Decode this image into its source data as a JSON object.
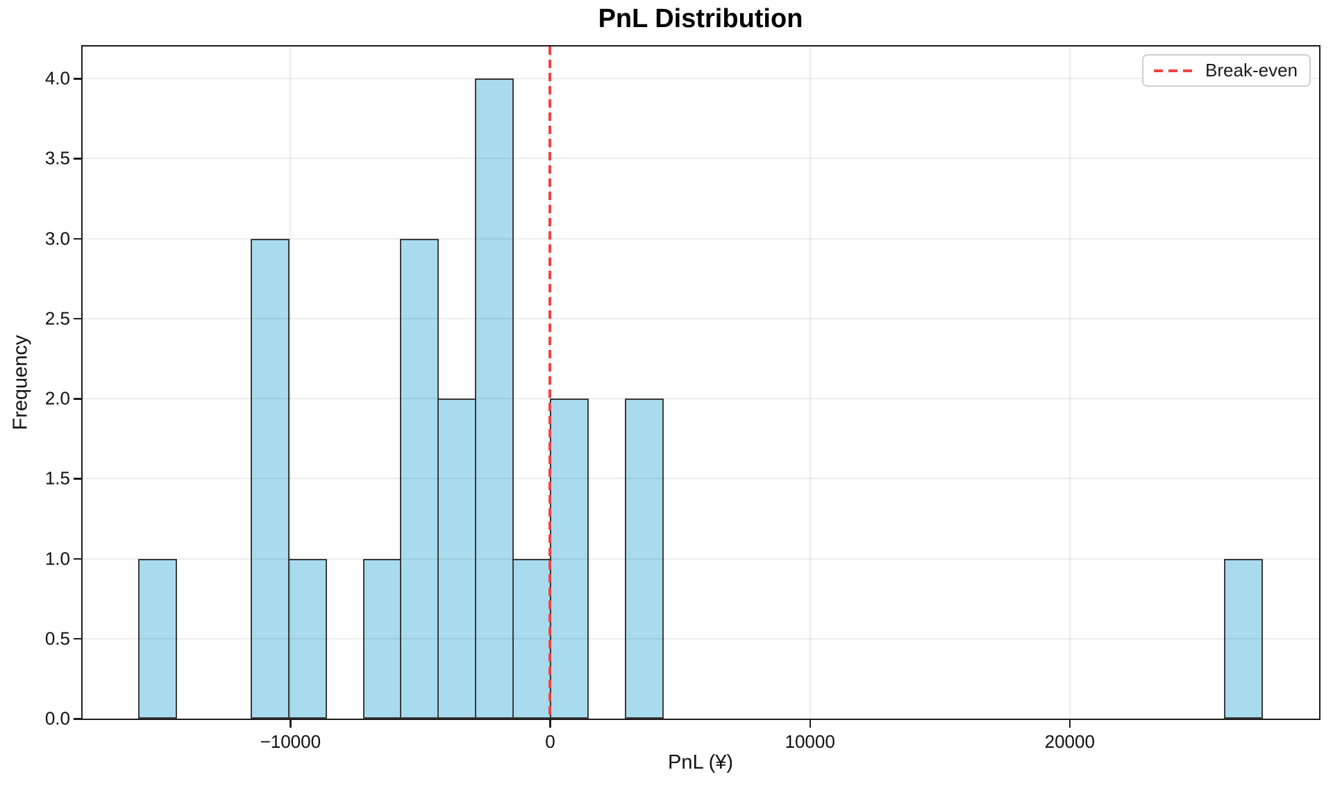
{
  "chart_data": {
    "type": "bar",
    "subtype": "histogram",
    "title": "PnL Distribution",
    "xlabel": "PnL (¥)",
    "ylabel": "Frequency",
    "bin_edges": [
      -15840,
      -14398,
      -12956,
      -11514,
      -10072,
      -8630,
      -7188,
      -5746,
      -4304,
      -2862,
      -1420,
      22,
      1464,
      2906,
      4348,
      5790,
      7232,
      8674,
      10116,
      11558,
      13000,
      14442,
      15884,
      17326,
      18768,
      20210,
      21652,
      23094,
      24536,
      25978,
      27420
    ],
    "counts": [
      1,
      0,
      0,
      3,
      1,
      0,
      1,
      3,
      2,
      4,
      1,
      2,
      0,
      2,
      0,
      0,
      0,
      0,
      0,
      0,
      0,
      0,
      0,
      0,
      0,
      0,
      0,
      0,
      0,
      1
    ],
    "xlim": [
      -18000,
      29600
    ],
    "ylim": [
      0,
      4.2
    ],
    "xticks": [
      {
        "value": -10000,
        "label": "−10000"
      },
      {
        "value": 0,
        "label": "0"
      },
      {
        "value": 10000,
        "label": "10000"
      },
      {
        "value": 20000,
        "label": "20000"
      }
    ],
    "yticks": [
      {
        "value": 0.0,
        "label": "0.0"
      },
      {
        "value": 0.5,
        "label": "0.5"
      },
      {
        "value": 1.0,
        "label": "1.0"
      },
      {
        "value": 1.5,
        "label": "1.5"
      },
      {
        "value": 2.0,
        "label": "2.0"
      },
      {
        "value": 2.5,
        "label": "2.5"
      },
      {
        "value": 3.0,
        "label": "3.0"
      },
      {
        "value": 3.5,
        "label": "3.5"
      },
      {
        "value": 4.0,
        "label": "4.0"
      }
    ],
    "grid": true,
    "legend_position": "top-right",
    "breakeven_line": {
      "x": 0,
      "label": "Break-even",
      "color": "#ef4444",
      "style": "dashed"
    },
    "colors": {
      "bar_fill": "#a9dbee",
      "bar_edge": "#3a3a3a",
      "breakeven_red": "#ef4444",
      "grid": "rgba(0,0,0,0.07)",
      "spine": "#1c1c1c",
      "text": "#111111"
    },
    "legend": {
      "items": [
        {
          "label": "Break-even"
        }
      ]
    }
  }
}
